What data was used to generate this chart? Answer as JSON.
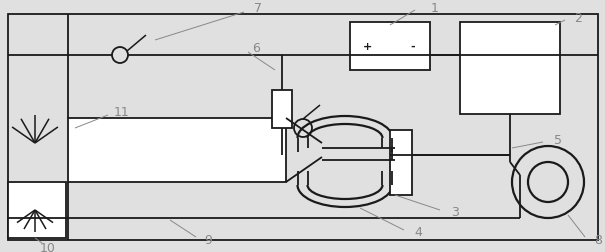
{
  "bg_color": "#e0e0e0",
  "line_color": "#1a1a1a",
  "label_color": "#888888",
  "fig_width": 6.05,
  "fig_height": 2.52,
  "dpi": 100,
  "lw": 1.3,
  "lw_thin": 0.7
}
